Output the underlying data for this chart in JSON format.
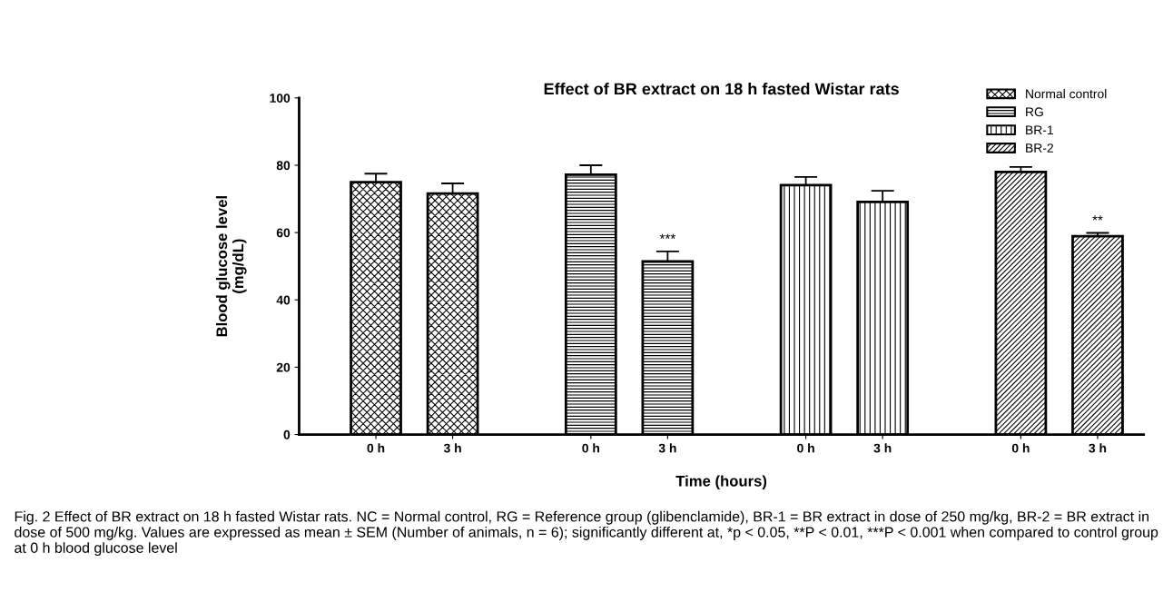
{
  "chart_data": {
    "type": "bar",
    "title": "Effect of BR extract on 18 h fasted Wistar rats",
    "xlabel": "Time (hours)",
    "ylabel": "Blood glucose level\n(mg/dL)",
    "categories": [
      "0 h",
      "3 h",
      "0 h",
      "3 h",
      "0 h",
      "3 h",
      "0 h",
      "3 h"
    ],
    "series": [
      {
        "name": "Normal control",
        "color": "#000000",
        "values": [
          75,
          71.6,
          null,
          null,
          null,
          null,
          null,
          null
        ],
        "errors": [
          2.5,
          3.0,
          null,
          null,
          null,
          null,
          null,
          null
        ]
      },
      {
        "name": "RG",
        "color": "#000000",
        "values": [
          null,
          null,
          77.2,
          51.4,
          null,
          null,
          null,
          null
        ],
        "errors": [
          null,
          null,
          2.8,
          3.0,
          null,
          null,
          null,
          null
        ],
        "value_labels": [
          null,
          null,
          null,
          "***",
          null,
          null,
          null,
          null
        ]
      },
      {
        "name": "BR-1",
        "color": "#000000",
        "values": [
          null,
          null,
          null,
          null,
          74.1,
          69.1,
          null,
          null
        ],
        "errors": [
          null,
          null,
          null,
          null,
          2.4,
          3.3,
          null,
          null
        ]
      },
      {
        "name": "BR-2",
        "color": "#000000",
        "values": [
          null,
          null,
          null,
          null,
          null,
          null,
          78.0,
          58.9
        ],
        "errors": [
          null,
          null,
          null,
          null,
          null,
          null,
          1.5,
          1.0
        ],
        "value_labels": [
          null,
          null,
          null,
          null,
          null,
          null,
          null,
          "**"
        ]
      }
    ],
    "ylim": [
      0,
      100
    ],
    "yticks": [
      0,
      20,
      40,
      60,
      80,
      100
    ],
    "legend": "top right",
    "annotations": [
      "Fig. 2 Effect of BR extract on 18 h fasted Wistar rats. NC = Normal control, RG = Reference group (glibenclamide), BR-1 = BR extract in dose of 250 mg/kg, BR-2 = BR extract in dose of 500 mg/kg. Values are expressed as mean ± SEM (Number of animals, n = 6); significantly different at, *p < 0.05, **P < 0.01, ***P < 0.001 when compared to control group at 0 h blood glucose level"
    ]
  }
}
